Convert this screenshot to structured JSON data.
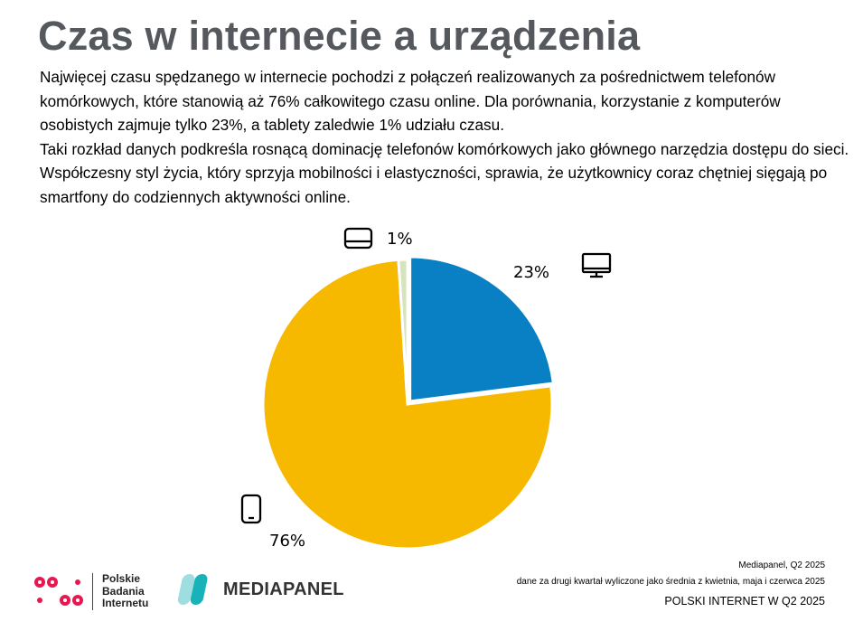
{
  "title": "Czas w internecie a urządzenia",
  "description": [
    "Najwięcej czasu spędzanego w internecie pochodzi z połączeń realizowanych za pośrednictwem telefonów komórkowych, które stanowią aż 76% całkowitego czasu online. Dla porównania, korzystanie z komputerów osobistych zajmuje tylko 23%, a tablety zaledwie 1% udziału czasu.",
    "Taki rozkład danych podkreśla rosnącą dominację telefonów komórkowych jako głównego narzędzia dostępu do sieci. Współczesny styl życia, który sprzyja mobilności i elastyczności, sprawia, że użytkownicy coraz chętniej sięgają po smartfony do codziennych aktywności online."
  ],
  "chart_data": {
    "type": "pie",
    "slices": [
      {
        "category": "computer",
        "icon": "desktop-monitor-icon",
        "value": 23,
        "label": "23%",
        "color": "#0a80c4"
      },
      {
        "category": "phone",
        "icon": "smartphone-icon",
        "value": 76,
        "label": "76%",
        "color": "#f7b800"
      },
      {
        "category": "tablet",
        "icon": "tablet-icon",
        "value": 1,
        "label": "1%",
        "color": "#d6e4bd"
      }
    ]
  },
  "footer": {
    "source": "Mediapanel, Q2 2025",
    "note": "dane za drugi kwartał wyliczone jako średnia z kwietnia, maja i czerwca 2025",
    "report_title": "POLSKI INTERNET W Q2 2025",
    "pbi_logo_text": [
      "Polskie",
      "Badania",
      "Internetu"
    ],
    "mediapanel_logo_text": "MEDIAPANEL"
  }
}
